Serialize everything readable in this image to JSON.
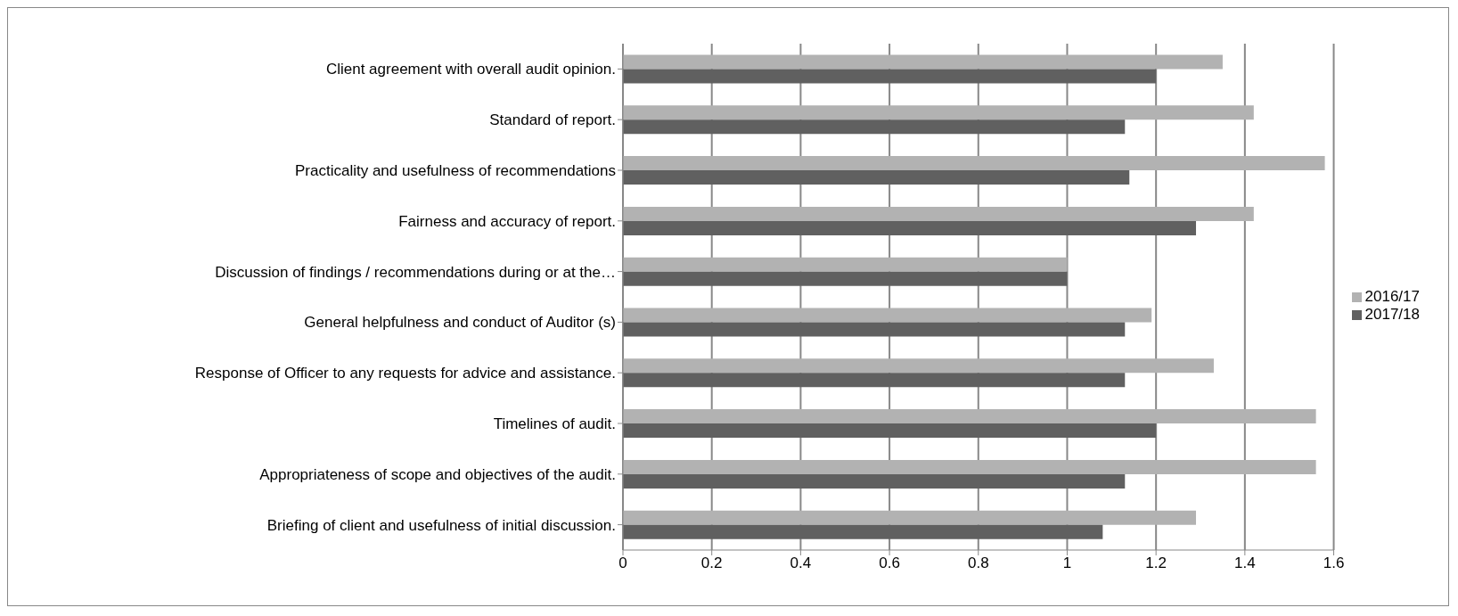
{
  "chart_data": {
    "type": "bar",
    "orientation": "horizontal",
    "categories": [
      "Client agreement with overall audit opinion.",
      "Standard of report.",
      "Practicality and usefulness of recommendations",
      "Fairness and accuracy of report.",
      "Discussion of findings / recommendations during or at the…",
      "General helpfulness and conduct of Auditor (s)",
      "Response of Officer to any requests for advice and assistance.",
      "Timelines of audit.",
      "Appropriateness of scope and objectives of the audit.",
      "Briefing of client and usefulness of initial discussion."
    ],
    "series": [
      {
        "name": "2016/17",
        "color": "#b2b2b2",
        "values": [
          1.35,
          1.42,
          1.58,
          1.42,
          1.0,
          1.19,
          1.33,
          1.56,
          1.56,
          1.29
        ]
      },
      {
        "name": "2017/18",
        "color": "#606060",
        "values": [
          1.2,
          1.13,
          1.14,
          1.29,
          1.0,
          1.13,
          1.13,
          1.2,
          1.13,
          1.08
        ]
      }
    ],
    "xlim": [
      0,
      1.6
    ],
    "xticks": [
      0,
      0.2,
      0.4,
      0.6,
      0.8,
      1,
      1.2,
      1.4,
      1.6
    ],
    "grid": "x",
    "legend": "right"
  }
}
